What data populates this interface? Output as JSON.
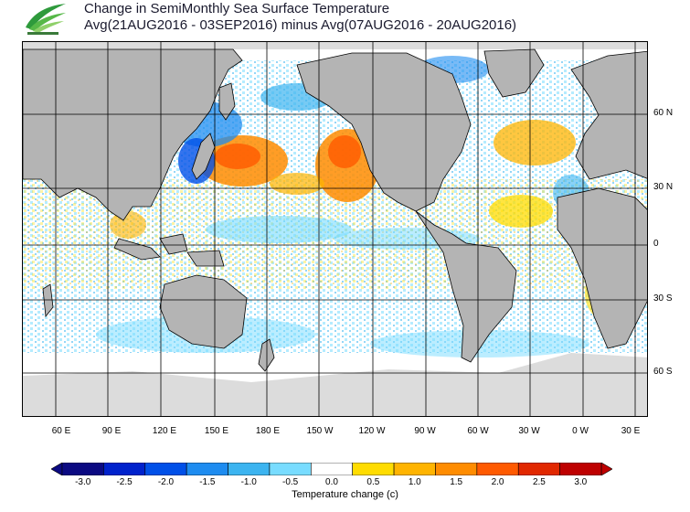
{
  "header": {
    "title_line1": "Change in SemiMonthly Sea Surface Temperature",
    "title_line2": "Avg(21AUG2016 - 03SEP2016) minus Avg(07AUG2016 - 20AUG2016)"
  },
  "map": {
    "projection": "equirectangular",
    "lon_range": "40E to 40E (global, Pacific-centered)",
    "lat_range": [
      -80,
      90
    ],
    "land_color": "#b4b4b4",
    "ice_color": "#dcdcdc",
    "grid": true,
    "lat_labels": [
      "60 N",
      "30 N",
      "0",
      "30 S",
      "60 S"
    ],
    "lon_labels": [
      "60 E",
      "90 E",
      "120 E",
      "150 E",
      "180 E",
      "150 W",
      "120 W",
      "90 W",
      "60 W",
      "30 W",
      "0 W",
      "30 E"
    ]
  },
  "legend": {
    "title": "Temperature change (c)",
    "ticks": [
      "-3.0",
      "-2.5",
      "-2.0",
      "-1.5",
      "-1.0",
      "-0.5",
      "0.0",
      "0.5",
      "1.0",
      "1.5",
      "2.0",
      "2.5",
      "3.0"
    ],
    "colors": [
      "#0b0a82",
      "#0022cc",
      "#0050e8",
      "#1e8cf0",
      "#3cb4f0",
      "#78dcff",
      "#ffffff",
      "#ffdc00",
      "#ffb400",
      "#ff8c00",
      "#ff5a00",
      "#e12800",
      "#be0000"
    ]
  }
}
